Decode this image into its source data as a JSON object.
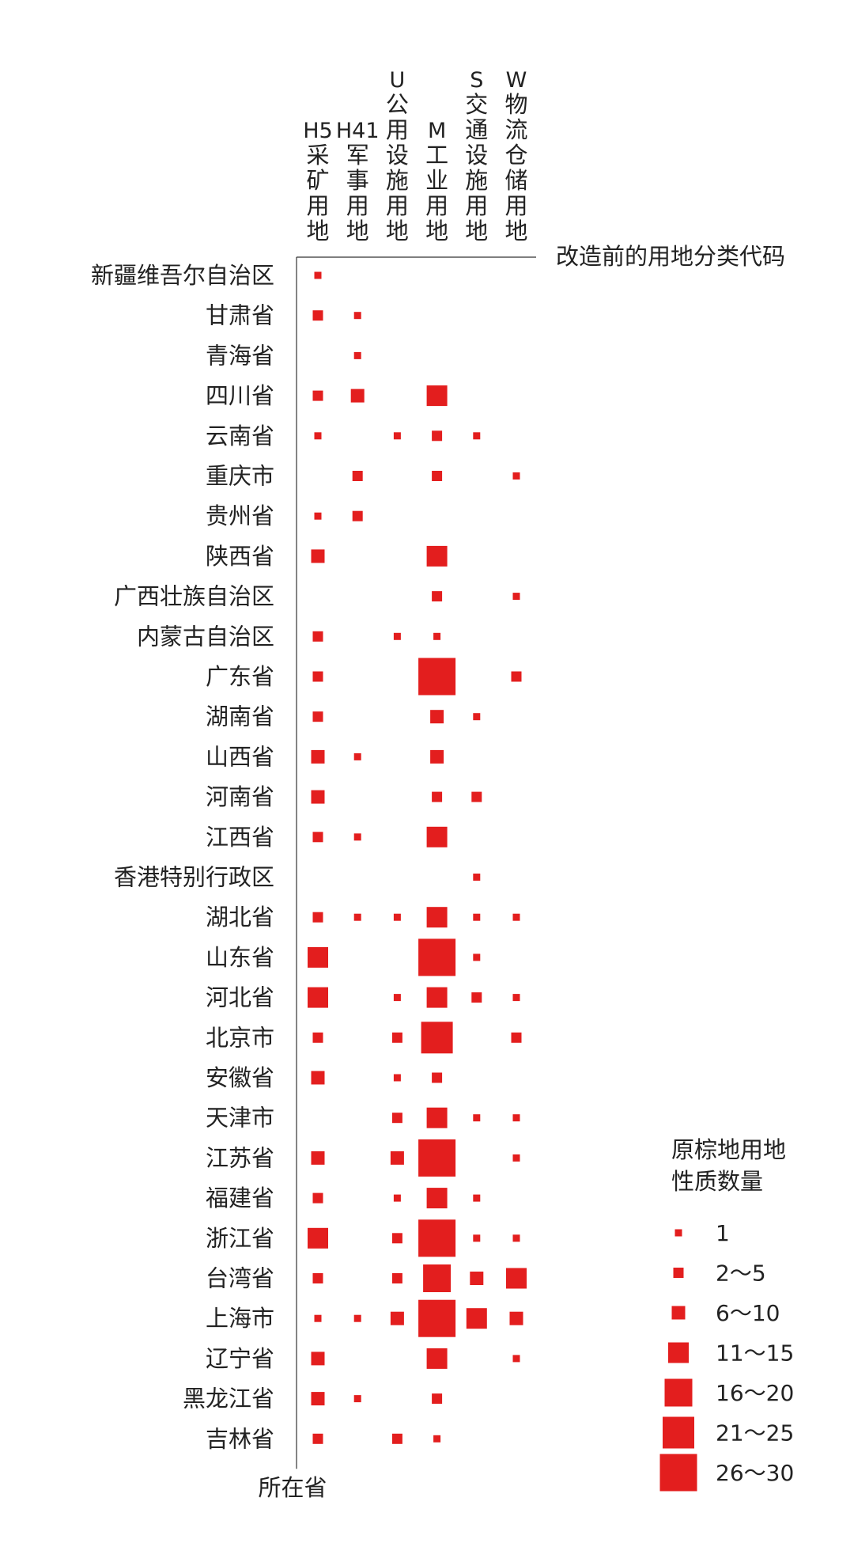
{
  "chart_data": {
    "type": "matrix-bubble",
    "xlabel": "改造前的用地分类代码",
    "ylabel": "所在省",
    "marker_color": "#e31e1e",
    "columns": [
      {
        "id": "H5",
        "code": "H5",
        "name": "采矿用地"
      },
      {
        "id": "H41",
        "code": "H41",
        "name": "军事用地"
      },
      {
        "id": "U",
        "code": "U",
        "name": "公用设施用地"
      },
      {
        "id": "M",
        "code": "M",
        "name": "工业用地"
      },
      {
        "id": "S",
        "code": "S",
        "name": "交通设施用地"
      },
      {
        "id": "W",
        "code": "W",
        "name": "物流仓储用地"
      }
    ],
    "legend": {
      "title_line1": "原棕地用地",
      "title_line2": "性质数量",
      "classes": [
        "1",
        "2～5",
        "6～10",
        "11～15",
        "16～20",
        "21～25",
        "26～30"
      ]
    },
    "rows": [
      {
        "name": "新疆维吾尔自治区",
        "values": {
          "H5": 1
        }
      },
      {
        "name": "甘肃省",
        "values": {
          "H5": 3,
          "H41": 1
        }
      },
      {
        "name": "青海省",
        "values": {
          "H41": 1
        }
      },
      {
        "name": "四川省",
        "values": {
          "H5": 3,
          "H41": 8,
          "M": 13
        }
      },
      {
        "name": "云南省",
        "values": {
          "H5": 1,
          "U": 1,
          "M": 4,
          "S": 1
        }
      },
      {
        "name": "重庆市",
        "values": {
          "H41": 3,
          "M": 3,
          "W": 1
        }
      },
      {
        "name": "贵州省",
        "values": {
          "H5": 1,
          "H41": 3
        }
      },
      {
        "name": "陕西省",
        "values": {
          "H5": 6,
          "M": 14
        }
      },
      {
        "name": "广西壮族自治区",
        "values": {
          "M": 3,
          "W": 1
        }
      },
      {
        "name": "内蒙古自治区",
        "values": {
          "H5": 3,
          "U": 1,
          "M": 1
        }
      },
      {
        "name": "广东省",
        "values": {
          "H5": 5,
          "M": 30,
          "W": 4
        }
      },
      {
        "name": "湖南省",
        "values": {
          "H5": 5,
          "M": 6,
          "S": 1
        }
      },
      {
        "name": "山西省",
        "values": {
          "H5": 6,
          "H41": 1,
          "M": 6
        }
      },
      {
        "name": "河南省",
        "values": {
          "H5": 6,
          "M": 4,
          "S": 3
        }
      },
      {
        "name": "江西省",
        "values": {
          "H5": 3,
          "H41": 1,
          "M": 12
        }
      },
      {
        "name": "香港特别行政区",
        "values": {
          "S": 1
        }
      },
      {
        "name": "湖北省",
        "values": {
          "H5": 3,
          "H41": 1,
          "U": 1,
          "M": 14,
          "S": 1,
          "W": 1
        }
      },
      {
        "name": "山东省",
        "values": {
          "H5": 14,
          "M": 26,
          "S": 1
        }
      },
      {
        "name": "河北省",
        "values": {
          "H5": 11,
          "U": 1,
          "M": 12,
          "S": 4,
          "W": 1
        }
      },
      {
        "name": "北京市",
        "values": {
          "H5": 3,
          "U": 3,
          "M": 22,
          "W": 4
        }
      },
      {
        "name": "安徽省",
        "values": {
          "H5": 7,
          "U": 1,
          "M": 3
        }
      },
      {
        "name": "天津市",
        "values": {
          "U": 3,
          "M": 13,
          "S": 1,
          "W": 1
        }
      },
      {
        "name": "江苏省",
        "values": {
          "H5": 8,
          "U": 6,
          "M": 26,
          "W": 1
        }
      },
      {
        "name": "福建省",
        "values": {
          "H5": 3,
          "U": 1,
          "M": 12,
          "S": 1
        }
      },
      {
        "name": "浙江省",
        "values": {
          "H5": 12,
          "U": 3,
          "M": 26,
          "S": 1,
          "W": 1
        }
      },
      {
        "name": "台湾省",
        "values": {
          "H5": 4,
          "U": 3,
          "M": 20,
          "S": 9,
          "W": 11
        }
      },
      {
        "name": "上海市",
        "values": {
          "H5": 1,
          "H41": 1,
          "U": 8,
          "M": 30,
          "S": 11,
          "W": 9
        }
      },
      {
        "name": "辽宁省",
        "values": {
          "H5": 6,
          "M": 14,
          "W": 1
        }
      },
      {
        "name": "黑龙江省",
        "values": {
          "H5": 9,
          "H41": 1,
          "M": 3
        }
      },
      {
        "name": "吉林省",
        "values": {
          "H5": 5,
          "U": 5,
          "M": 1
        }
      }
    ]
  }
}
